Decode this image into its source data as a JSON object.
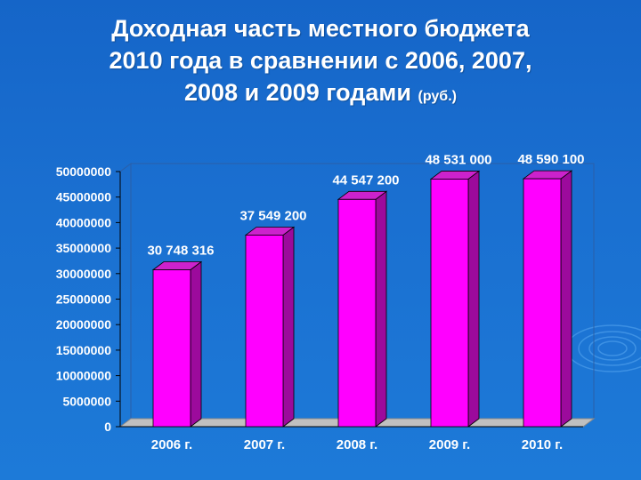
{
  "slide": {
    "title_lines": [
      "Доходная часть местного бюджета",
      "2010 года в сравнении с 2006, 2007,",
      "2008 и 2009  годами"
    ],
    "title_unit": "(руб.)"
  },
  "colors": {
    "background": "#1a6fd0",
    "bar_front": "#ff00ff",
    "bar_side": "#9c0a9c",
    "bar_top": "#cc22cc",
    "floor": "#c0c0c0",
    "label_text": "#ffffff",
    "tick_text": "#ffffff"
  },
  "chart_data": {
    "type": "bar",
    "style": "3d-columns",
    "categories": [
      "2006 г.",
      "2007 г.",
      "2008 г.",
      "2009 г.",
      "2010 г."
    ],
    "values": [
      30748316,
      37549200,
      44547200,
      48531000,
      48590100
    ],
    "data_labels": [
      "30 748 316",
      "37 549 200",
      "44 547 200",
      "48 531 000",
      "48 590 100"
    ],
    "ylim": [
      0,
      50000000
    ],
    "yticks": [
      0,
      5000000,
      10000000,
      15000000,
      20000000,
      25000000,
      30000000,
      35000000,
      40000000,
      45000000,
      50000000
    ],
    "ytick_labels": [
      "0",
      "5000000",
      "10000000",
      "15000000",
      "20000000",
      "25000000",
      "30000000",
      "35000000",
      "40000000",
      "45000000",
      "50000000"
    ],
    "grid": false,
    "legend": "none"
  }
}
